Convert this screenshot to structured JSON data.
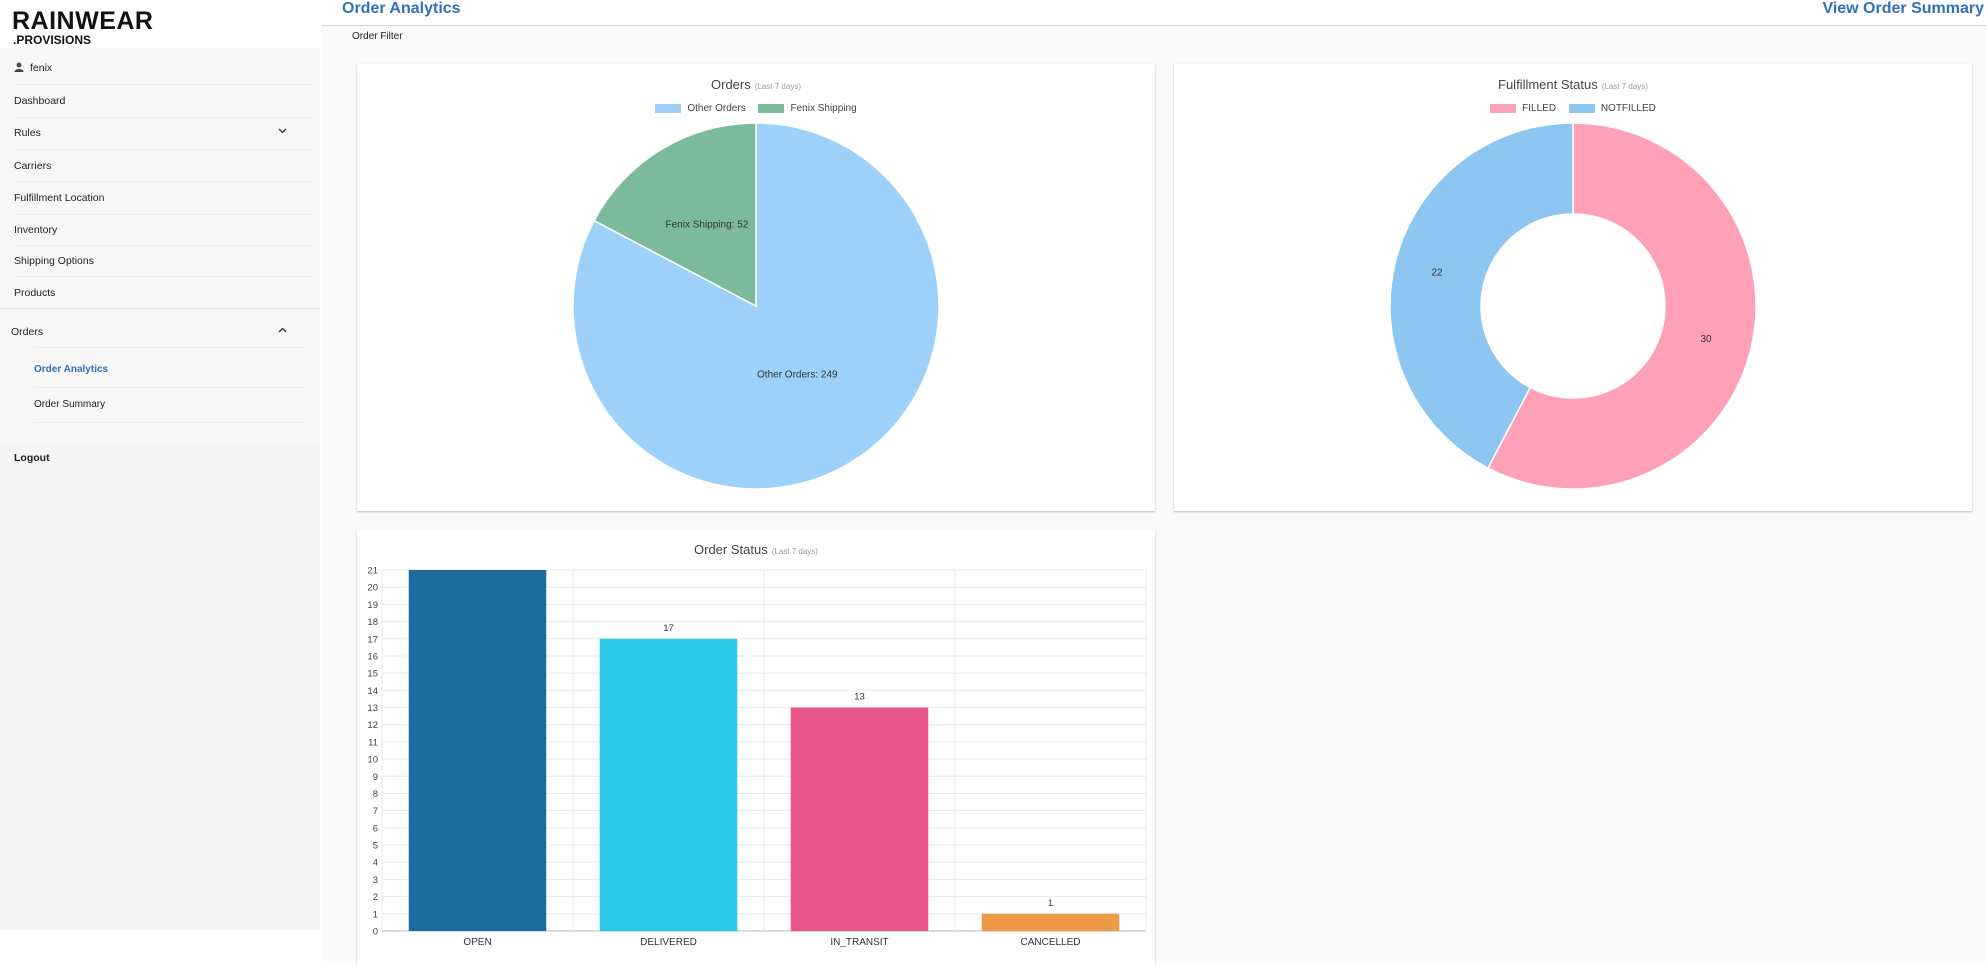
{
  "brand": {
    "name": "RAINWEAR",
    "suffix": ".PROVISIONS"
  },
  "sidebar": {
    "user": "fenix",
    "items": [
      {
        "label": "Dashboard"
      },
      {
        "label": "Rules"
      },
      {
        "label": "Carriers"
      },
      {
        "label": "Fulfillment Location"
      },
      {
        "label": "Inventory"
      },
      {
        "label": "Shipping Options"
      },
      {
        "label": "Products"
      }
    ],
    "orders": {
      "label": "Orders",
      "sub_items": [
        {
          "label": "Order Analytics",
          "active": true
        },
        {
          "label": "Order Summary",
          "active": false
        }
      ]
    },
    "logout": "Logout"
  },
  "header": {
    "title": "Order Analytics",
    "link": "View Order Summary"
  },
  "filter": {
    "label": "Order Filter"
  },
  "colors": {
    "accent": "#2f72b8"
  },
  "chart_data": [
    {
      "type": "pie",
      "title": "Orders",
      "subtitle": "(Last 7 days)",
      "categories": [
        "Other Orders",
        "Fenix Shipping"
      ],
      "values": [
        249,
        52
      ],
      "slice_labels": [
        "Other Orders: 249",
        "Fenix Shipping: 52"
      ],
      "colors": [
        "#9dd1f9",
        "#7bbb99"
      ],
      "legend": "top"
    },
    {
      "type": "pie",
      "variant": "doughnut",
      "title": "Fulfillment Status",
      "subtitle": "(Last 7 days)",
      "categories": [
        "FILLED",
        "NOTFILLED"
      ],
      "values": [
        30,
        22
      ],
      "slice_labels": [
        "30",
        "22"
      ],
      "colors": [
        "#ffa1b6",
        "#8cc6f1"
      ],
      "legend": "top"
    },
    {
      "type": "bar",
      "title": "Order Status",
      "subtitle": "(Last 7 days)",
      "categories": [
        "OPEN",
        "DELIVERED",
        "IN_TRANSIT",
        "CANCELLED"
      ],
      "values": [
        21,
        17,
        13,
        1
      ],
      "value_labels": [
        "",
        "17",
        "13",
        "1"
      ],
      "colors": [
        "#1d6c9d",
        "#2ac9e5",
        "#e8558b",
        "#ef9b45"
      ],
      "ylim": [
        0,
        21
      ],
      "yticks": [
        "0",
        "1",
        "2",
        "3",
        "4",
        "5",
        "6",
        "7",
        "8",
        "9",
        "10",
        "11",
        "12",
        "13",
        "14",
        "15",
        "16",
        "17",
        "18",
        "19",
        "20",
        "21"
      ],
      "grid": true
    }
  ]
}
